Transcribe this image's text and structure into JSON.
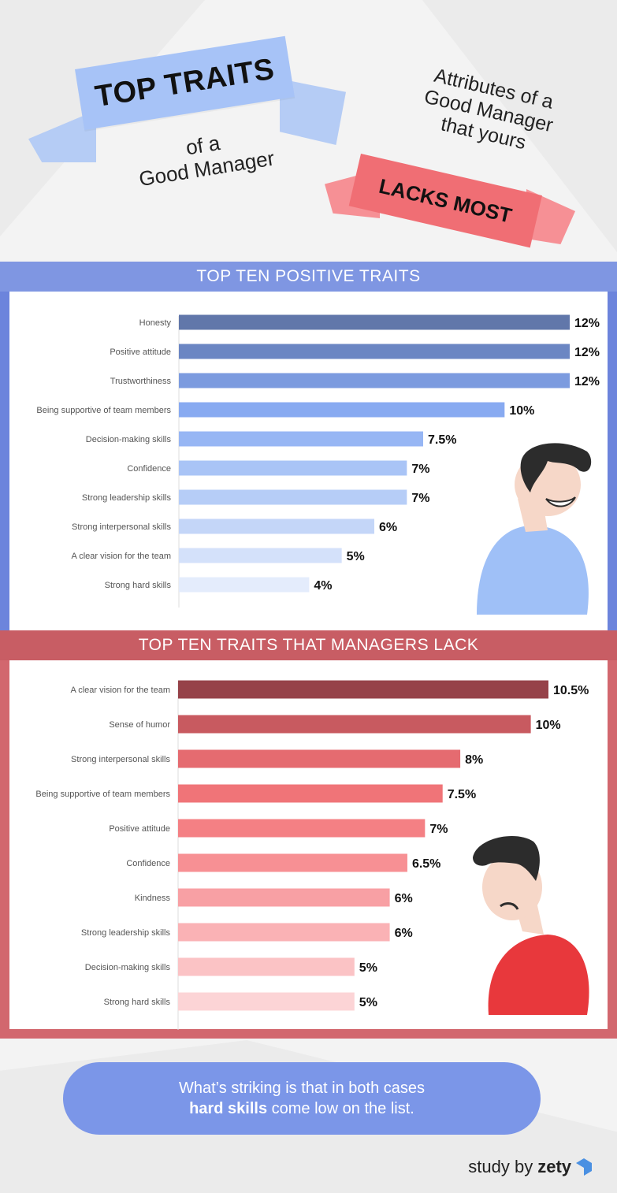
{
  "header": {
    "left_ribbon": "TOP TRAITS",
    "left_sub_line1": "of a",
    "left_sub_line2": "Good Manager",
    "right_line1": "Attributes of a",
    "right_line2": "Good Manager",
    "right_line3": "that yours",
    "right_ribbon": "LACKS MOST"
  },
  "colors": {
    "blue_section": "#6c84dc",
    "red_section": "#d2676e",
    "pill": "#7b96e8"
  },
  "footer": {
    "pill_line1": "What’s striking is that in both cases",
    "pill_bold": "hard skills",
    "pill_rest": " come low on the list.",
    "credit_prefix": "study by",
    "credit_brand": "zety"
  },
  "chart_data": [
    {
      "type": "bar",
      "orientation": "horizontal",
      "title": "TOP TEN POSITIVE TRAITS",
      "categories": [
        "Honesty",
        "Positive attitude",
        "Trustworthiness",
        "Being supportive of team members",
        "Decision-making skills",
        "Confidence",
        "Strong leadership skills",
        "Strong interpersonal skills",
        "A clear vision for the team",
        "Strong hard skills"
      ],
      "values": [
        12,
        12,
        12,
        10,
        7.5,
        7,
        7,
        6,
        5,
        4
      ],
      "value_labels": [
        "12%",
        "12%",
        "12%",
        "10%",
        "7.5%",
        "7%",
        "7%",
        "6%",
        "5%",
        "4%"
      ],
      "colors": [
        "#6177aa",
        "#6b86c3",
        "#7c9bdf",
        "#88aaf1",
        "#97b6f4",
        "#a9c4f6",
        "#b6cdf7",
        "#c4d6f8",
        "#d4e1fa",
        "#e4ecfc"
      ],
      "xlim": [
        0,
        12
      ]
    },
    {
      "type": "bar",
      "orientation": "horizontal",
      "title": "TOP TEN TRAITS THAT MANAGERS LACK",
      "categories": [
        "A clear vision for the team",
        "Sense of humor",
        "Strong interpersonal skills",
        "Being supportive of team members",
        "Positive attitude",
        "Confidence",
        "Kindness",
        "Strong leadership skills",
        "Decision-making skills",
        "Strong hard skills"
      ],
      "values": [
        10.5,
        10,
        8,
        7.5,
        7,
        6.5,
        6,
        6,
        5,
        5
      ],
      "value_labels": [
        "10.5%",
        "10%",
        "8%",
        "7.5%",
        "7%",
        "6.5%",
        "6%",
        "6%",
        "5%",
        "5%"
      ],
      "colors": [
        "#964249",
        "#c85a60",
        "#e56b70",
        "#f07478",
        "#f48084",
        "#f79094",
        "#f8a0a4",
        "#fab2b5",
        "#fbc3c5",
        "#fcd4d6"
      ],
      "xlim": [
        0,
        10.5
      ]
    }
  ]
}
